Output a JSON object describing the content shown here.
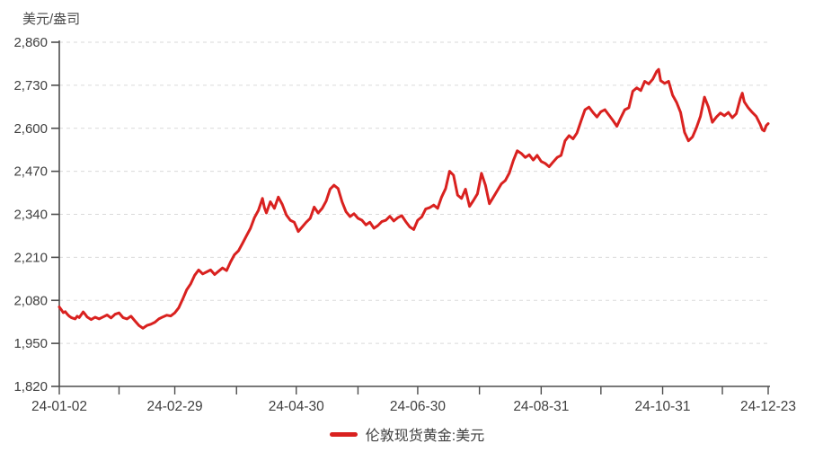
{
  "chart_data": {
    "type": "line",
    "ylabel": "美元/盎司",
    "series": [
      {
        "name": "伦敦现货黄金:美元",
        "color": "#d9211f",
        "points": [
          [
            0,
            2060
          ],
          [
            1,
            2052
          ],
          [
            2,
            2043
          ],
          [
            3,
            2046
          ],
          [
            4,
            2038
          ],
          [
            5,
            2032
          ],
          [
            6,
            2028
          ],
          [
            8,
            2024
          ],
          [
            9,
            2032
          ],
          [
            10,
            2028
          ],
          [
            12,
            2045
          ],
          [
            13,
            2038
          ],
          [
            14,
            2030
          ],
          [
            16,
            2022
          ],
          [
            18,
            2029
          ],
          [
            20,
            2024
          ],
          [
            22,
            2030
          ],
          [
            24,
            2036
          ],
          [
            26,
            2027
          ],
          [
            28,
            2038
          ],
          [
            30,
            2042
          ],
          [
            32,
            2028
          ],
          [
            34,
            2024
          ],
          [
            36,
            2032
          ],
          [
            38,
            2018
          ],
          [
            40,
            2004
          ],
          [
            42,
            1996
          ],
          [
            44,
            2004
          ],
          [
            46,
            2008
          ],
          [
            48,
            2014
          ],
          [
            50,
            2024
          ],
          [
            52,
            2030
          ],
          [
            54,
            2035
          ],
          [
            56,
            2033
          ],
          [
            58,
            2042
          ],
          [
            60,
            2058
          ],
          [
            62,
            2084
          ],
          [
            64,
            2112
          ],
          [
            66,
            2130
          ],
          [
            68,
            2156
          ],
          [
            70,
            2172
          ],
          [
            72,
            2160
          ],
          [
            74,
            2166
          ],
          [
            76,
            2172
          ],
          [
            78,
            2158
          ],
          [
            80,
            2168
          ],
          [
            82,
            2178
          ],
          [
            84,
            2170
          ],
          [
            86,
            2196
          ],
          [
            88,
            2218
          ],
          [
            90,
            2230
          ],
          [
            92,
            2252
          ],
          [
            94,
            2275
          ],
          [
            96,
            2298
          ],
          [
            98,
            2330
          ],
          [
            100,
            2352
          ],
          [
            102,
            2388
          ],
          [
            103,
            2360
          ],
          [
            104,
            2344
          ],
          [
            106,
            2378
          ],
          [
            108,
            2358
          ],
          [
            110,
            2392
          ],
          [
            112,
            2370
          ],
          [
            114,
            2338
          ],
          [
            116,
            2322
          ],
          [
            118,
            2316
          ],
          [
            120,
            2288
          ],
          [
            122,
            2302
          ],
          [
            124,
            2316
          ],
          [
            126,
            2328
          ],
          [
            128,
            2362
          ],
          [
            130,
            2344
          ],
          [
            132,
            2358
          ],
          [
            134,
            2380
          ],
          [
            136,
            2416
          ],
          [
            138,
            2428
          ],
          [
            140,
            2418
          ],
          [
            142,
            2378
          ],
          [
            144,
            2348
          ],
          [
            146,
            2333
          ],
          [
            148,
            2342
          ],
          [
            150,
            2328
          ],
          [
            152,
            2322
          ],
          [
            154,
            2308
          ],
          [
            156,
            2316
          ],
          [
            158,
            2298
          ],
          [
            160,
            2306
          ],
          [
            162,
            2318
          ],
          [
            164,
            2322
          ],
          [
            166,
            2334
          ],
          [
            168,
            2320
          ],
          [
            170,
            2330
          ],
          [
            172,
            2336
          ],
          [
            174,
            2318
          ],
          [
            176,
            2302
          ],
          [
            178,
            2294
          ],
          [
            180,
            2322
          ],
          [
            182,
            2332
          ],
          [
            184,
            2356
          ],
          [
            186,
            2360
          ],
          [
            188,
            2368
          ],
          [
            190,
            2358
          ],
          [
            192,
            2392
          ],
          [
            194,
            2418
          ],
          [
            196,
            2470
          ],
          [
            198,
            2458
          ],
          [
            200,
            2398
          ],
          [
            202,
            2388
          ],
          [
            204,
            2416
          ],
          [
            206,
            2364
          ],
          [
            208,
            2382
          ],
          [
            210,
            2402
          ],
          [
            212,
            2464
          ],
          [
            214,
            2428
          ],
          [
            216,
            2372
          ],
          [
            218,
            2392
          ],
          [
            220,
            2412
          ],
          [
            222,
            2432
          ],
          [
            224,
            2442
          ],
          [
            226,
            2465
          ],
          [
            228,
            2502
          ],
          [
            230,
            2532
          ],
          [
            232,
            2524
          ],
          [
            234,
            2512
          ],
          [
            236,
            2520
          ],
          [
            238,
            2504
          ],
          [
            240,
            2518
          ],
          [
            242,
            2500
          ],
          [
            244,
            2494
          ],
          [
            246,
            2484
          ],
          [
            248,
            2498
          ],
          [
            250,
            2512
          ],
          [
            252,
            2518
          ],
          [
            254,
            2562
          ],
          [
            256,
            2578
          ],
          [
            258,
            2568
          ],
          [
            260,
            2586
          ],
          [
            262,
            2622
          ],
          [
            264,
            2656
          ],
          [
            266,
            2664
          ],
          [
            268,
            2648
          ],
          [
            270,
            2634
          ],
          [
            272,
            2650
          ],
          [
            274,
            2656
          ],
          [
            276,
            2640
          ],
          [
            278,
            2624
          ],
          [
            280,
            2606
          ],
          [
            282,
            2632
          ],
          [
            284,
            2656
          ],
          [
            286,
            2662
          ],
          [
            288,
            2712
          ],
          [
            290,
            2722
          ],
          [
            292,
            2714
          ],
          [
            294,
            2742
          ],
          [
            296,
            2734
          ],
          [
            298,
            2748
          ],
          [
            300,
            2772
          ],
          [
            301,
            2778
          ],
          [
            302,
            2744
          ],
          [
            304,
            2736
          ],
          [
            306,
            2742
          ],
          [
            308,
            2700
          ],
          [
            310,
            2678
          ],
          [
            312,
            2648
          ],
          [
            314,
            2588
          ],
          [
            316,
            2562
          ],
          [
            318,
            2574
          ],
          [
            320,
            2602
          ],
          [
            322,
            2636
          ],
          [
            324,
            2694
          ],
          [
            326,
            2664
          ],
          [
            328,
            2618
          ],
          [
            330,
            2634
          ],
          [
            332,
            2646
          ],
          [
            334,
            2638
          ],
          [
            336,
            2648
          ],
          [
            338,
            2632
          ],
          [
            340,
            2644
          ],
          [
            342,
            2690
          ],
          [
            343,
            2706
          ],
          [
            344,
            2680
          ],
          [
            346,
            2662
          ],
          [
            348,
            2648
          ],
          [
            350,
            2636
          ],
          [
            352,
            2612
          ],
          [
            353,
            2596
          ],
          [
            354,
            2592
          ],
          [
            355,
            2608
          ],
          [
            356,
            2614
          ]
        ]
      }
    ],
    "y_axis": {
      "min": 1820,
      "max": 2860,
      "tick_interval": 130,
      "ticks": [
        {
          "value": 2860,
          "label": "2,860"
        },
        {
          "value": 2730,
          "label": "2,730"
        },
        {
          "value": 2600,
          "label": "2,600"
        },
        {
          "value": 2470,
          "label": "2,470"
        },
        {
          "value": 2340,
          "label": "2,340"
        },
        {
          "value": 2210,
          "label": "2,210"
        },
        {
          "value": 2080,
          "label": "2,080"
        },
        {
          "value": 1950,
          "label": "1,950"
        },
        {
          "value": 1820,
          "label": "1,820"
        }
      ]
    },
    "x_axis": {
      "max_day": 356,
      "major_ticks": [
        {
          "day": 0,
          "label": "24-01-02"
        },
        {
          "day": 58,
          "label": "24-02-29"
        },
        {
          "day": 119,
          "label": "24-04-30"
        },
        {
          "day": 180,
          "label": "24-06-30"
        },
        {
          "day": 242,
          "label": "24-08-31"
        },
        {
          "day": 303,
          "label": "24-10-31"
        },
        {
          "day": 356,
          "label": "24-12-23"
        }
      ],
      "minor_tick_days": [
        30,
        89,
        150,
        211,
        272,
        333
      ]
    },
    "grid": {
      "horizontal_dashed": true,
      "color": "#dadada"
    },
    "axis_color": "#4d4d4d",
    "text_color": "#404040",
    "legend": {
      "position": "bottom",
      "items": [
        {
          "label": "伦敦现货黄金:美元",
          "color": "#d9211f"
        }
      ]
    }
  }
}
